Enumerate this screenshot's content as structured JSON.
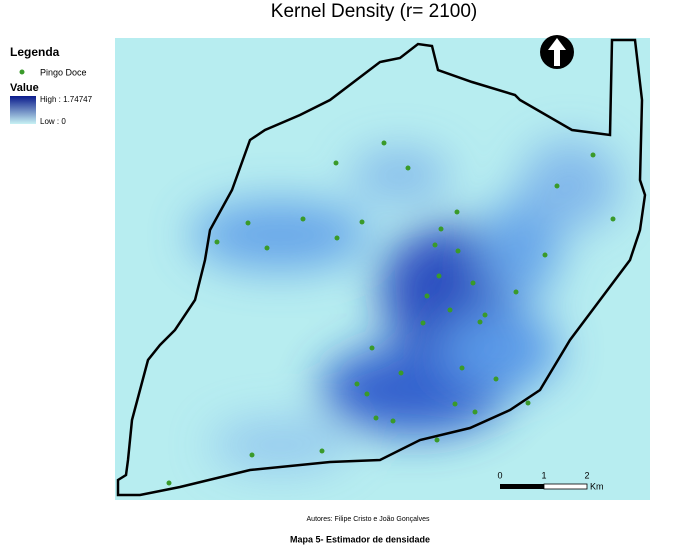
{
  "map": {
    "title": "Kernel Density (r= 2100)",
    "legend": {
      "heading": "Legenda",
      "points_label": "Pingo Doce",
      "value_heading": "Value",
      "high": "High : 1.74747",
      "low": "Low : 0"
    },
    "scale_bar": {
      "ticks": [
        "0",
        "1",
        "2"
      ],
      "unit": "Km"
    },
    "authors": "Autores: Filipe Cristo e João Gonçalves",
    "caption": "Mapa  5- Estimador de densidade"
  }
}
